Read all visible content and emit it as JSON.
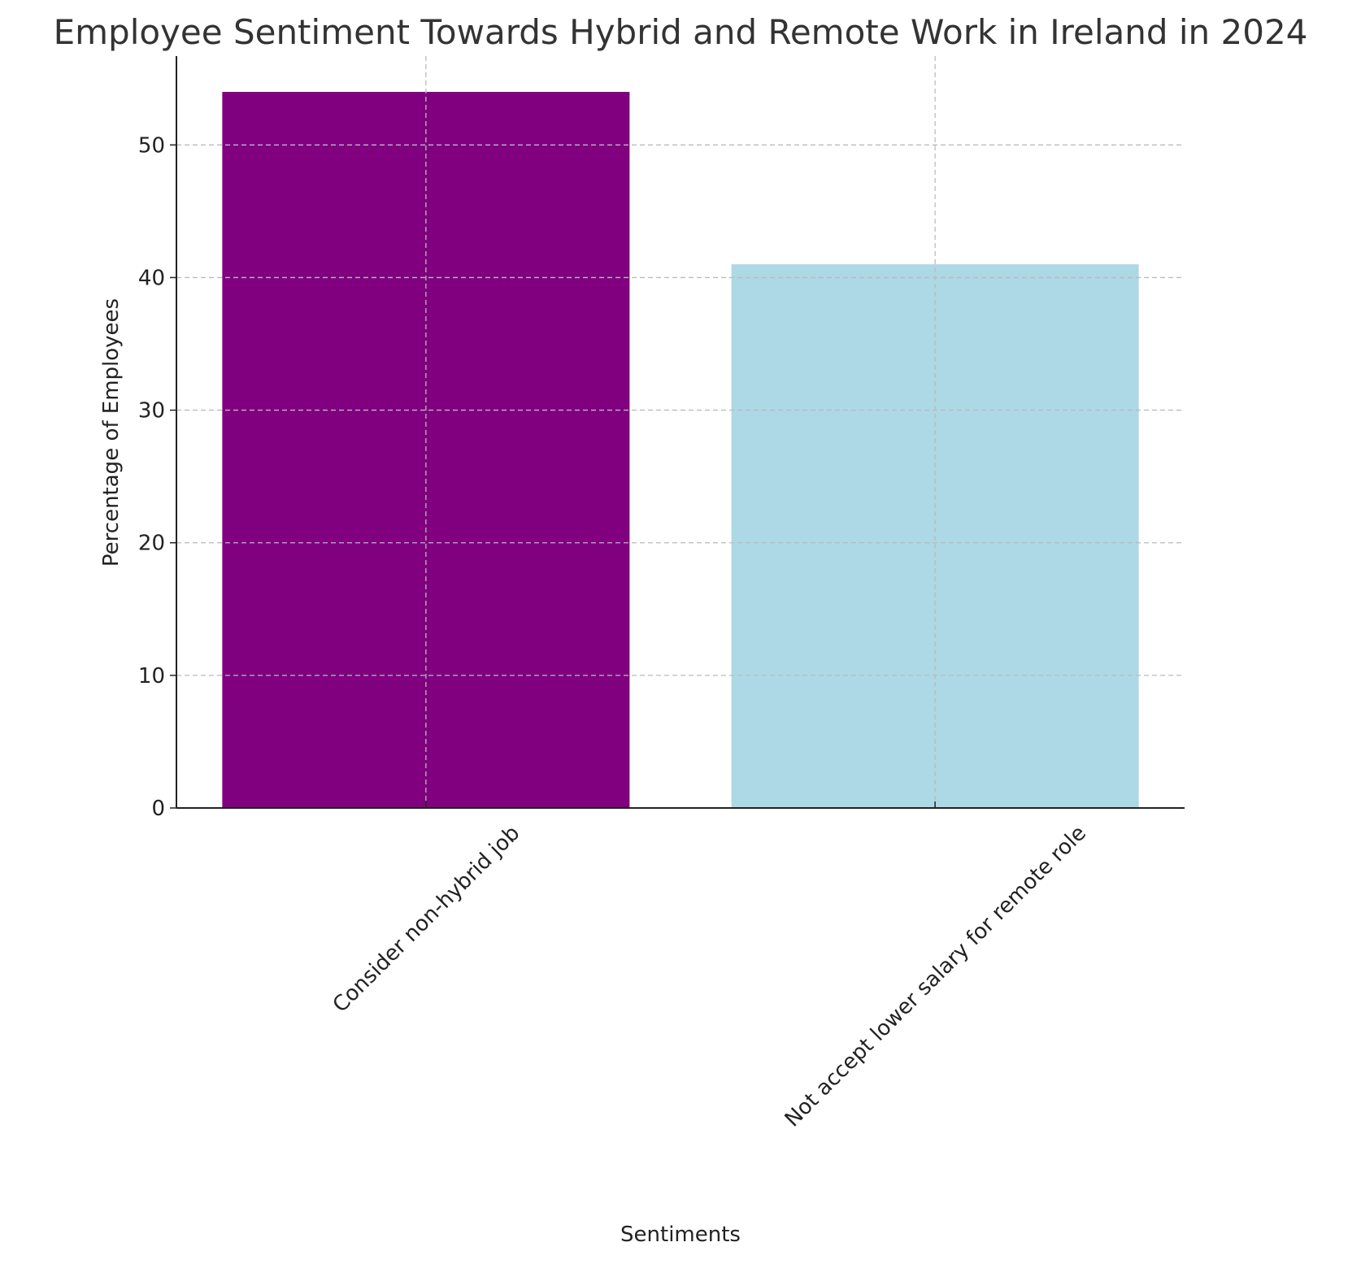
{
  "chart_data": {
    "type": "bar",
    "title": "Employee Sentiment Towards Hybrid and Remote Work in Ireland in 2024",
    "x_label": "Sentiments",
    "y_label": "Percentage of Employees",
    "categories": [
      "Consider non-hybrid job",
      "Not accept lower salary for remote role"
    ],
    "values": [
      54,
      41
    ],
    "colors": [
      "#800080",
      "#add8e6"
    ],
    "ylim": [
      0,
      56.7
    ],
    "yticks": [
      0,
      10,
      20,
      30,
      40,
      50
    ],
    "grid": true
  }
}
